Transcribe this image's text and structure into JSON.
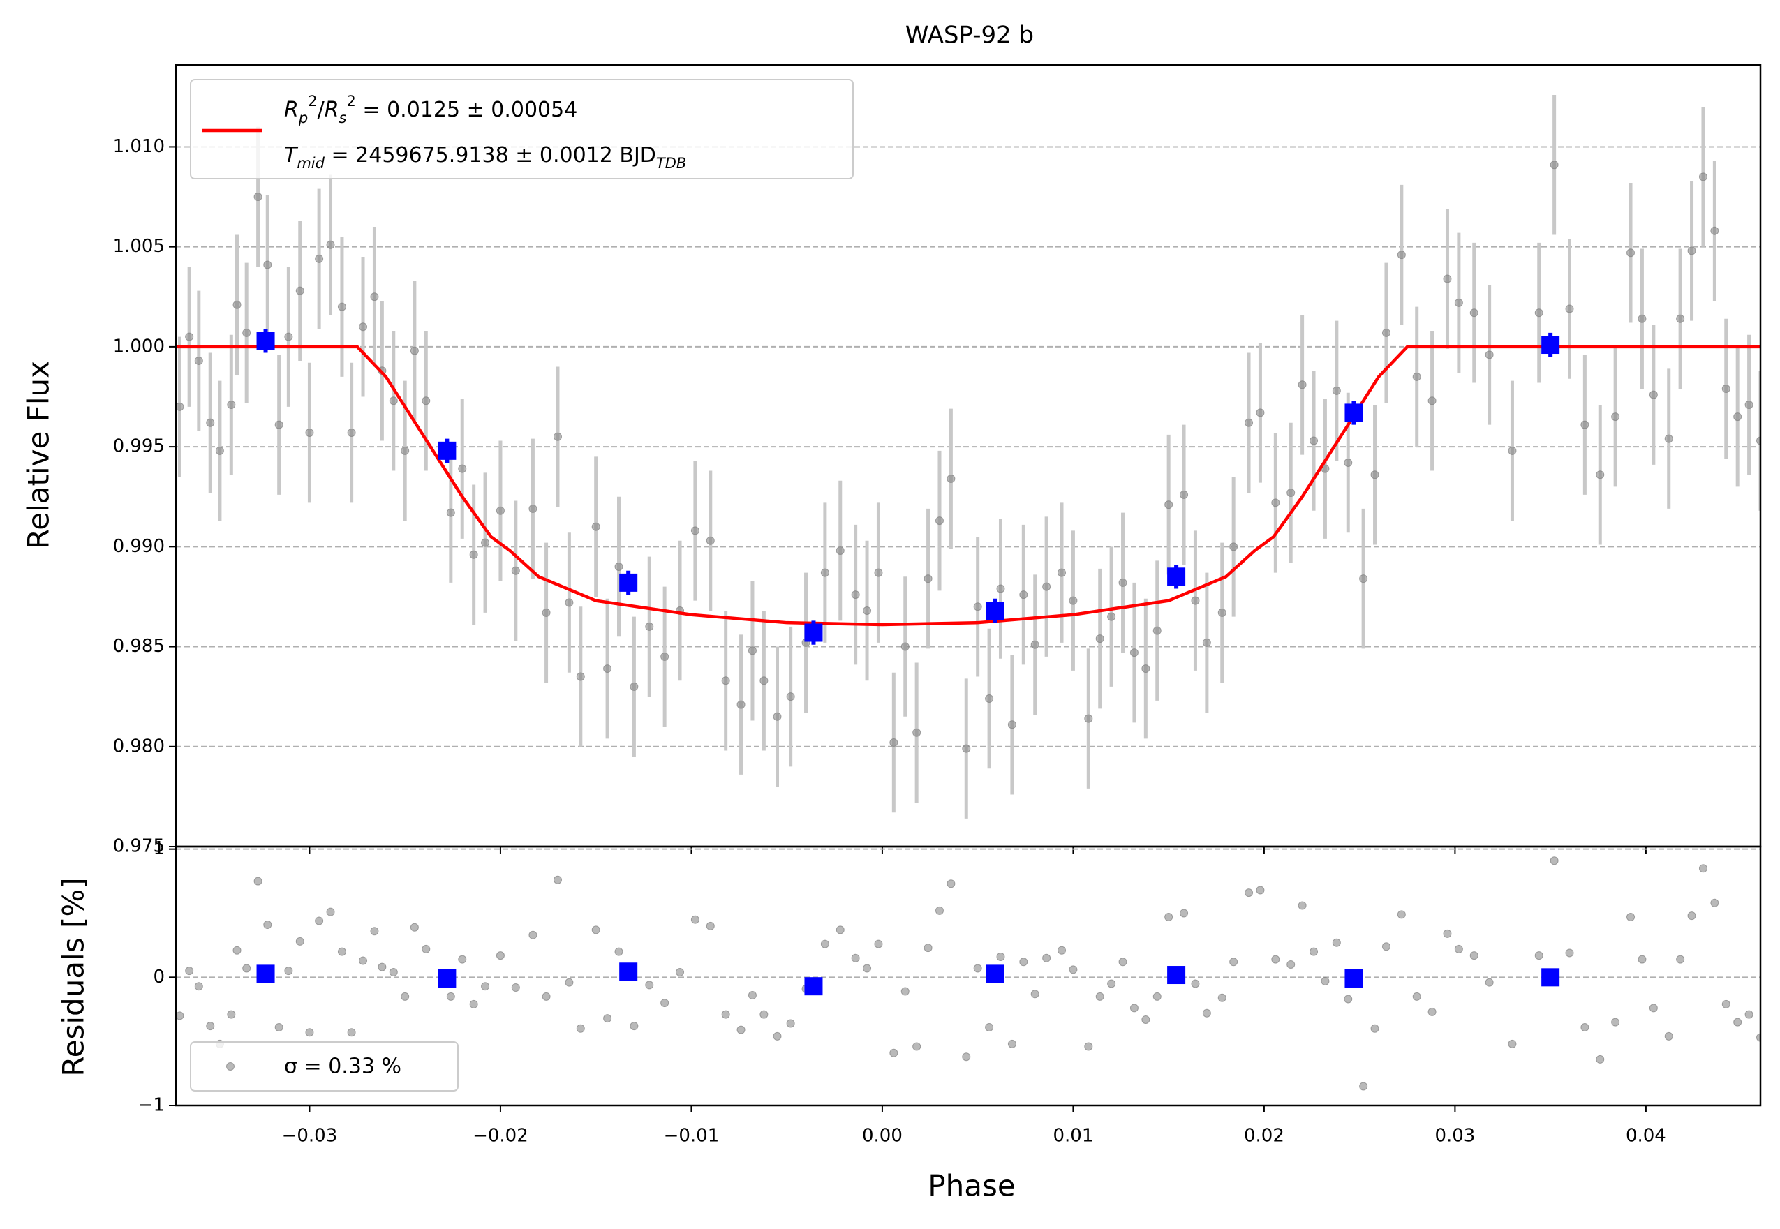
{
  "chart_data": [
    {
      "type": "scatter",
      "title": "WASP-92 b",
      "ylabel": "Relative Flux",
      "xlim": [
        -0.037,
        0.046
      ],
      "ylim": [
        0.975,
        1.0141
      ],
      "grid": true,
      "legend": "upper left",
      "yticks": [
        0.975,
        {
          "value": 0.98,
          "label": "0.980"
        },
        0.985,
        {
          "value": 0.99,
          "label": "0.990"
        },
        0.995,
        {
          "value": 1.0,
          "label": "1.000"
        },
        1.005,
        {
          "value": 1.01,
          "label": "1.010"
        }
      ],
      "series": [
        {
          "color": "#808080",
          "marker": "circle",
          "error": 0.0035,
          "x": [
            -0.0368,
            -0.0363,
            -0.0358,
            -0.0352,
            -0.0347,
            -0.0341,
            -0.0338,
            -0.0333,
            -0.0327,
            -0.0322,
            -0.0316,
            -0.0311,
            -0.0305,
            -0.03,
            -0.0295,
            -0.0289,
            -0.0283,
            -0.0278,
            -0.0272,
            -0.0266,
            -0.0262,
            -0.0256,
            -0.025,
            -0.0245,
            -0.0239,
            -0.0226,
            -0.022,
            -0.0214,
            -0.0208,
            -0.02,
            -0.0192,
            -0.0183,
            -0.0176,
            -0.017,
            -0.0164,
            -0.0158,
            -0.015,
            -0.0144,
            -0.0138,
            -0.013,
            -0.0122,
            -0.0114,
            -0.0106,
            -0.0098,
            -0.009,
            -0.0082,
            -0.0074,
            -0.0068,
            -0.0062,
            -0.0055,
            -0.0048,
            -0.004,
            -0.003,
            -0.0022,
            -0.0014,
            -0.0008,
            -0.0002,
            0.0006,
            0.0012,
            0.0018,
            0.0024,
            0.003,
            0.0036,
            0.0044,
            0.005,
            0.0056,
            0.0062,
            0.0068,
            0.0074,
            0.008,
            0.0086,
            0.0094,
            0.01,
            0.0108,
            0.0114,
            0.012,
            0.0126,
            0.0132,
            0.0138,
            0.0144,
            0.015,
            0.0158,
            0.0164,
            0.017,
            0.0178,
            0.0184,
            0.0192,
            0.0198,
            0.0206,
            0.0214,
            0.022,
            0.0226,
            0.0232,
            0.0238,
            0.0244,
            0.0252,
            0.0258,
            0.0264,
            0.0272,
            0.028,
            0.0288,
            0.0296,
            0.0302,
            0.031,
            0.0318,
            0.033,
            0.0344,
            0.0352,
            0.036,
            0.0368,
            0.0376,
            0.0384,
            0.0392,
            0.0398,
            0.0404,
            0.0412,
            0.0418,
            0.0424,
            0.043,
            0.0436,
            0.0442,
            0.0448,
            0.0454,
            0.046
          ],
          "values": [
            0.997,
            1.0005,
            0.9993,
            0.9962,
            0.9948,
            0.9971,
            1.0021,
            1.0007,
            1.0075,
            1.0041,
            0.9961,
            1.0005,
            1.0028,
            0.9957,
            1.0044,
            1.0051,
            1.002,
            0.9957,
            1.001,
            1.0025,
            0.9988,
            0.9973,
            0.9948,
            0.9998,
            0.9973,
            0.9917,
            0.9939,
            0.9896,
            0.9902,
            0.9918,
            0.9888,
            0.9919,
            0.9867,
            0.9955,
            0.9872,
            0.9835,
            0.991,
            0.9839,
            0.989,
            0.983,
            0.986,
            0.9845,
            0.9868,
            0.9908,
            0.9903,
            0.9833,
            0.9821,
            0.9848,
            0.9833,
            0.9815,
            0.9825,
            0.9852,
            0.9887,
            0.9898,
            0.9876,
            0.9868,
            0.9887,
            0.9802,
            0.985,
            0.9807,
            0.9884,
            0.9913,
            0.9934,
            0.9799,
            0.987,
            0.9824,
            0.9879,
            0.9811,
            0.9876,
            0.9851,
            0.988,
            0.9887,
            0.9873,
            0.9814,
            0.9854,
            0.9865,
            0.9882,
            0.9847,
            0.9839,
            0.9858,
            0.9921,
            0.9926,
            0.9873,
            0.9852,
            0.9867,
            0.99,
            0.9962,
            0.9967,
            0.9922,
            0.9927,
            0.9981,
            0.9953,
            0.9939,
            0.9978,
            0.9942,
            0.9884,
            0.9936,
            1.0007,
            1.0046,
            0.9985,
            0.9973,
            1.0034,
            1.0022,
            1.0017,
            0.9996,
            0.9948,
            1.0017,
            1.0091,
            1.0019,
            0.9961,
            0.9936,
            0.9965,
            1.0047,
            1.0014,
            0.9976,
            0.9954,
            1.0014,
            1.0048,
            1.0085,
            1.0058,
            0.9979,
            0.9965,
            0.9971,
            0.9953
          ]
        },
        {
          "color": "#ff0000",
          "style": "line",
          "name": [
            [
              {
                "i": "R"
              },
              {
                "sub": "p"
              },
              {
                "sup": "2"
              },
              {
                "t": "/"
              },
              {
                "i": "R"
              },
              {
                "sub": "s"
              },
              {
                "sup": "2"
              },
              {
                "t": " = 0.0125 ± 0.00054"
              }
            ],
            [
              {
                "i": "T"
              },
              {
                "sub": "mid"
              },
              {
                "t": " = 2459675.9138 ± 0.0012 BJD"
              },
              {
                "sub": "TDB"
              }
            ]
          ],
          "x": [
            -0.037,
            -0.0275,
            -0.026,
            -0.024,
            -0.022,
            -0.0205,
            -0.0195,
            -0.018,
            -0.015,
            -0.01,
            -0.005,
            0,
            0.005,
            0.01,
            0.015,
            0.018,
            0.0195,
            0.0205,
            0.022,
            0.024,
            0.026,
            0.0275,
            0.046
          ],
          "values": [
            1,
            1,
            0.9985,
            0.9955,
            0.9925,
            0.9905,
            0.9898,
            0.9885,
            0.9873,
            0.9866,
            0.9862,
            0.9861,
            0.9862,
            0.9866,
            0.9873,
            0.9885,
            0.9898,
            0.9905,
            0.9925,
            0.9955,
            0.9985,
            1,
            1
          ]
        },
        {
          "color": "#0000ff",
          "marker": "square",
          "error": 0.0006,
          "x": [
            -0.0323,
            -0.0228,
            -0.0133,
            -0.0036,
            0.0059,
            0.0154,
            0.0247,
            0.035
          ],
          "values": [
            1.0003,
            0.9948,
            0.9882,
            0.9857,
            0.9868,
            0.9885,
            0.9967,
            1.0001
          ]
        }
      ]
    },
    {
      "type": "scatter",
      "ylabel": "Residuals [%]",
      "xlabel": "Phase",
      "xlim": [
        -0.037,
        0.046
      ],
      "ylim": [
        -1,
        1.02
      ],
      "grid": true,
      "legend": "lower left",
      "xticks": [
        {
          "value": -0.03,
          "label": "−0.03"
        },
        {
          "value": -0.02,
          "label": "−0.02"
        },
        {
          "value": -0.01,
          "label": "−0.01"
        },
        {
          "value": 0,
          "label": "0.00"
        },
        0.01,
        0.02,
        0.03,
        0.04
      ],
      "yticks": [
        {
          "value": -1,
          "label": "−1"
        },
        0,
        1
      ],
      "series": [
        {
          "name": "σ = 0.33 %",
          "color": "#808080",
          "marker": "circle",
          "x": [
            -0.0368,
            -0.0363,
            -0.0358,
            -0.0352,
            -0.0347,
            -0.0341,
            -0.0338,
            -0.0333,
            -0.0327,
            -0.0322,
            -0.0316,
            -0.0311,
            -0.0305,
            -0.03,
            -0.0295,
            -0.0289,
            -0.0283,
            -0.0278,
            -0.0272,
            -0.0266,
            -0.0262,
            -0.0256,
            -0.025,
            -0.0245,
            -0.0239,
            -0.0226,
            -0.022,
            -0.0214,
            -0.0208,
            -0.02,
            -0.0192,
            -0.0183,
            -0.0176,
            -0.017,
            -0.0164,
            -0.0158,
            -0.015,
            -0.0144,
            -0.0138,
            -0.013,
            -0.0122,
            -0.0114,
            -0.0106,
            -0.0098,
            -0.009,
            -0.0082,
            -0.0074,
            -0.0068,
            -0.0062,
            -0.0055,
            -0.0048,
            -0.004,
            -0.003,
            -0.0022,
            -0.0014,
            -0.0008,
            -0.0002,
            0.0006,
            0.0012,
            0.0018,
            0.0024,
            0.003,
            0.0036,
            0.0044,
            0.005,
            0.0056,
            0.0062,
            0.0068,
            0.0074,
            0.008,
            0.0086,
            0.0094,
            0.01,
            0.0108,
            0.0114,
            0.012,
            0.0126,
            0.0132,
            0.0138,
            0.0144,
            0.015,
            0.0158,
            0.0164,
            0.017,
            0.0178,
            0.0184,
            0.0192,
            0.0198,
            0.0206,
            0.0214,
            0.022,
            0.0226,
            0.0232,
            0.0238,
            0.0244,
            0.0252,
            0.0258,
            0.0264,
            0.0272,
            0.028,
            0.0288,
            0.0296,
            0.0302,
            0.031,
            0.0318,
            0.033,
            0.0344,
            0.0352,
            0.036,
            0.0368,
            0.0376,
            0.0384,
            0.0392,
            0.0398,
            0.0404,
            0.0412,
            0.0418,
            0.0424,
            0.043,
            0.0436,
            0.0442,
            0.0448,
            0.0454,
            0.046
          ],
          "values": [
            -0.3,
            0.05,
            -0.07,
            -0.38,
            -0.52,
            -0.29,
            0.21,
            0.07,
            0.75,
            0.41,
            -0.39,
            0.05,
            0.28,
            -0.43,
            0.44,
            0.51,
            0.2,
            -0.43,
            0.13,
            0.36,
            0.08,
            0.04,
            -0.15,
            0.39,
            0.22,
            -0.15,
            0.14,
            -0.21,
            -0.07,
            0.17,
            -0.08,
            0.33,
            -0.15,
            0.76,
            -0.04,
            -0.4,
            0.37,
            -0.32,
            0.2,
            -0.38,
            -0.06,
            -0.2,
            0.04,
            0.45,
            0.4,
            -0.29,
            -0.41,
            -0.14,
            -0.29,
            -0.46,
            -0.36,
            -0.09,
            0.26,
            0.37,
            0.15,
            0.07,
            0.26,
            -0.59,
            -0.11,
            -0.54,
            0.23,
            0.52,
            0.73,
            -0.62,
            0.07,
            -0.39,
            0.16,
            -0.52,
            0.12,
            -0.13,
            0.15,
            0.21,
            0.06,
            -0.54,
            -0.15,
            -0.05,
            0.12,
            -0.24,
            -0.33,
            -0.15,
            0.47,
            0.5,
            -0.05,
            -0.28,
            -0.16,
            0.12,
            0.66,
            0.68,
            0.14,
            0.1,
            0.56,
            0.2,
            -0.03,
            0.27,
            -0.17,
            -0.85,
            -0.4,
            0.24,
            0.49,
            -0.15,
            -0.27,
            0.34,
            0.22,
            0.17,
            -0.04,
            -0.52,
            0.17,
            0.91,
            0.19,
            -0.39,
            -0.64,
            -0.35,
            0.47,
            0.14,
            -0.24,
            -0.46,
            0.14,
            0.48,
            0.85,
            0.58,
            -0.21,
            -0.35,
            -0.29,
            -0.47
          ]
        },
        {
          "color": "#0000ff",
          "marker": "square",
          "x": [
            -0.0323,
            -0.0228,
            -0.0133,
            -0.0036,
            0.0059,
            0.0154,
            0.0247,
            0.035
          ],
          "values": [
            0.027,
            -0.009,
            0.044,
            -0.07,
            0.027,
            0.018,
            -0.009,
            0
          ]
        }
      ]
    }
  ]
}
